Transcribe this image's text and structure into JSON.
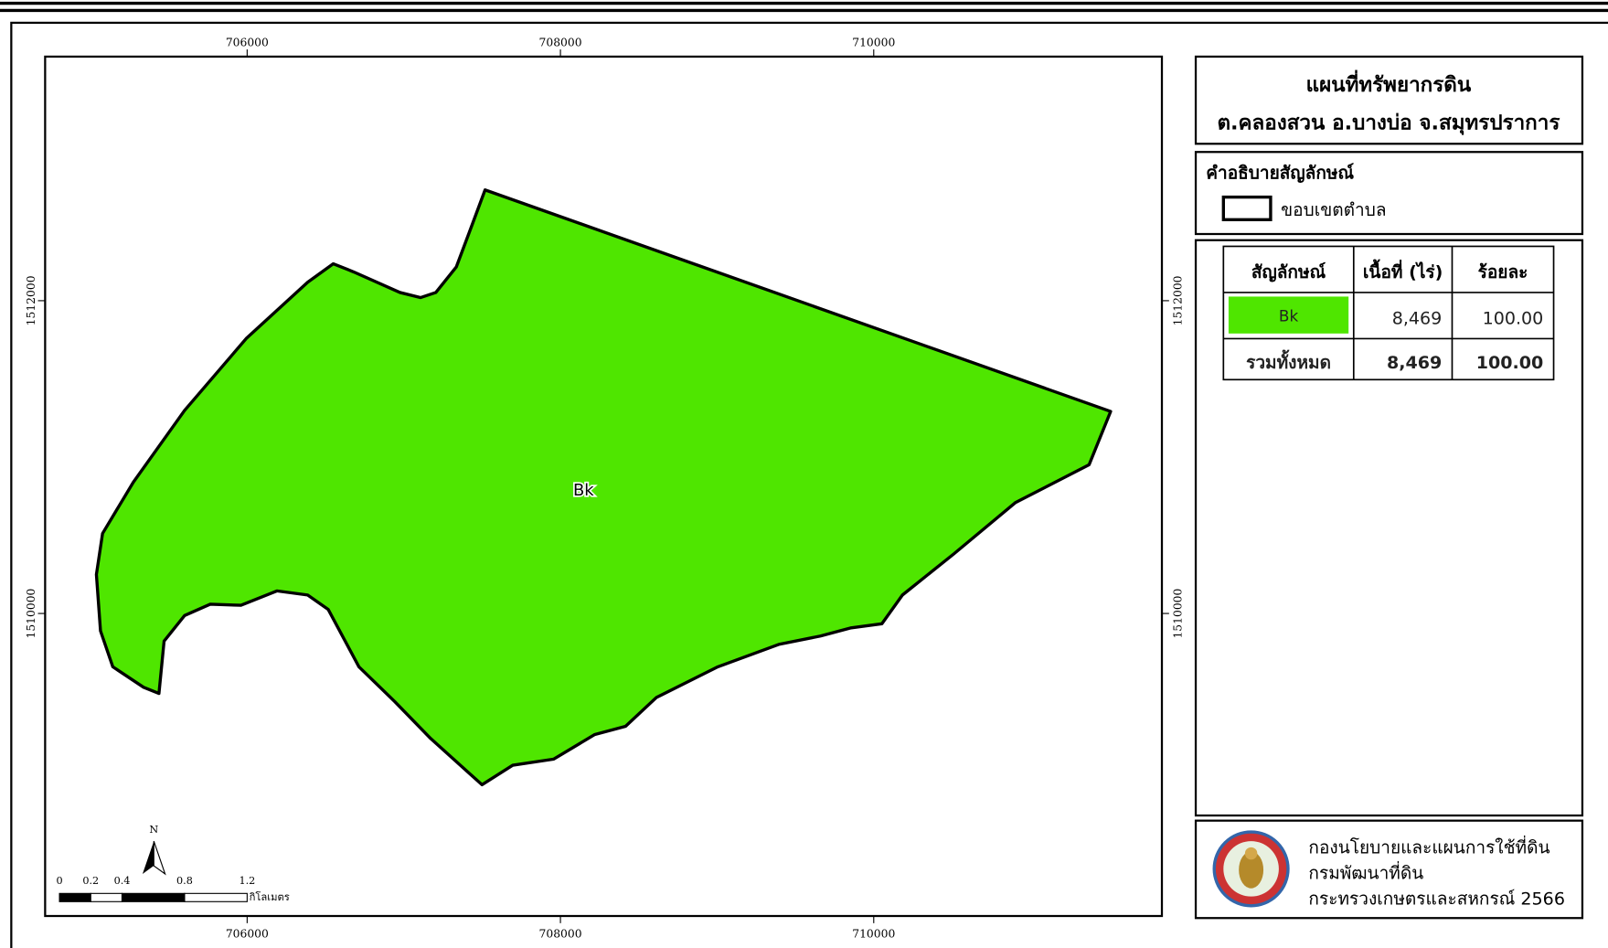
{
  "map": {
    "polygon_label": "Bk",
    "color": "#4fe600",
    "x_ticks": [
      706000,
      708000,
      710000
    ],
    "y_ticks": [
      1512000,
      1510000
    ],
    "north": "N",
    "scale_bar": {
      "ticks": [
        0,
        0.2,
        0.4,
        0.8,
        1.2
      ],
      "unit": "กิโลเมตร"
    }
  },
  "title": [
    "แผนที่ทรัพยากรดิน",
    "ต.คลองสวน อ.บางบ่อ จ.สมุทรปราการ"
  ],
  "legend": {
    "title": "คำอธิบายสัญลักษณ์",
    "items": [
      {
        "label": "ขอบเขตตำบล"
      }
    ]
  },
  "table": {
    "header": [
      "สัญลักษณ์",
      "เนื้อที่ (ไร่)",
      "ร้อยละ"
    ],
    "rows": [
      [
        "Bk",
        "8,469",
        "100.00"
      ],
      [
        "รวมทั้งหมด",
        "8,469",
        "100.00"
      ]
    ]
  },
  "footer": [
    "กองนโยบายและแผนการใช้ที่ดิน",
    "กรมพัฒนาที่ดิน",
    "กระทรวงเกษตรและสหกรณ์ 2566"
  ]
}
